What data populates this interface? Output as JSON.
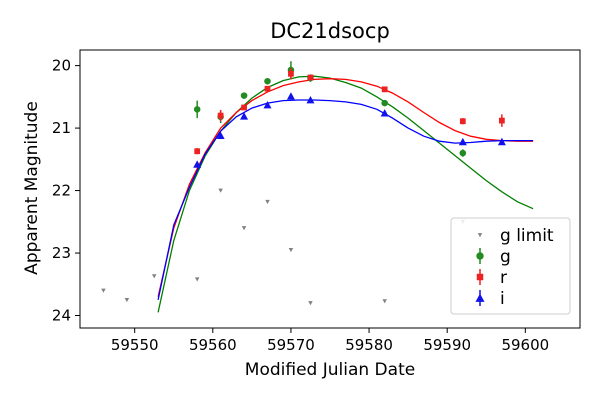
{
  "chart_data": {
    "type": "scatter",
    "title": "DC21dsocp",
    "xlabel": "Modified Julian Date",
    "ylabel": "Apparent Magnitude",
    "xlim": [
      59543,
      59607
    ],
    "ylim": [
      24.2,
      19.75
    ],
    "y_inverted": true,
    "xticks": [
      59550,
      59560,
      59570,
      59580,
      59590,
      59600
    ],
    "yticks": [
      20,
      21,
      22,
      23,
      24
    ],
    "grid": false,
    "legend_placement": "lower right",
    "series": [
      {
        "name": "g limit",
        "kind": "limit",
        "color": "#808080",
        "marker": "triangle-down",
        "x": [
          59546,
          59549,
          59552.5,
          59558,
          59561,
          59564,
          59567,
          59570,
          59572.5,
          59582,
          59592
        ],
        "y": [
          23.6,
          23.75,
          23.37,
          23.42,
          22.0,
          22.6,
          22.18,
          22.95,
          23.8,
          23.77,
          22.5
        ]
      },
      {
        "name": "g",
        "kind": "detection",
        "color": "#228b22",
        "marker": "circle",
        "x": [
          59558,
          59561,
          59564,
          59567,
          59570,
          59572.5,
          59582,
          59592
        ],
        "y": [
          20.7,
          20.82,
          20.48,
          20.25,
          20.07,
          20.2,
          20.6,
          21.4
        ],
        "err": [
          0.14,
          0.1,
          0.05,
          0.04,
          0.14,
          0.06,
          0.04,
          0.06
        ]
      },
      {
        "name": "r",
        "kind": "detection",
        "color": "#ee2222",
        "marker": "square",
        "x": [
          59558,
          59561,
          59564,
          59567,
          59570,
          59572.5,
          59582,
          59592,
          59597
        ],
        "y": [
          21.37,
          20.8,
          20.67,
          20.37,
          20.13,
          20.19,
          20.38,
          20.89,
          20.88
        ],
        "err": [
          0.05,
          0.09,
          0.04,
          0.03,
          0.09,
          0.04,
          0.03,
          0.05,
          0.1
        ]
      },
      {
        "name": "i",
        "kind": "detection",
        "color": "#1111ee",
        "marker": "triangle-up",
        "x": [
          59558,
          59561,
          59564,
          59567,
          59570,
          59572.5,
          59582,
          59592,
          59597
        ],
        "y": [
          21.58,
          21.12,
          20.81,
          20.63,
          20.49,
          20.55,
          20.76,
          21.22,
          21.22
        ],
        "err": [
          0.03,
          0.04,
          0.03,
          0.03,
          0.04,
          0.03,
          0.03,
          0.04,
          0.05
        ]
      }
    ],
    "model_curves": [
      {
        "color": "#008000",
        "x": [
          59553,
          59555,
          59557,
          59559,
          59561,
          59563,
          59565,
          59567,
          59569,
          59571,
          59573,
          59575,
          59577,
          59579,
          59581,
          59583,
          59585,
          59587,
          59589,
          59591,
          59593,
          59595,
          59597,
          59599,
          59601
        ],
        "y": [
          23.95,
          22.8,
          22.0,
          21.45,
          21.05,
          20.75,
          20.52,
          20.35,
          20.24,
          20.18,
          20.17,
          20.2,
          20.27,
          20.36,
          20.5,
          20.66,
          20.84,
          21.04,
          21.24,
          21.44,
          21.64,
          21.84,
          22.02,
          22.18,
          22.29
        ]
      },
      {
        "color": "#ff0000",
        "x": [
          59553,
          59555,
          59557,
          59559,
          59561,
          59563,
          59565,
          59567,
          59569,
          59571,
          59573,
          59575,
          59577,
          59579,
          59581,
          59583,
          59585,
          59587,
          59589,
          59591,
          59593,
          59595,
          59597,
          59599,
          59601
        ],
        "y": [
          23.7,
          22.6,
          21.9,
          21.4,
          21.0,
          20.75,
          20.56,
          20.42,
          20.32,
          20.26,
          20.22,
          20.21,
          20.22,
          20.26,
          20.33,
          20.44,
          20.58,
          20.75,
          20.91,
          21.04,
          21.13,
          21.18,
          21.2,
          21.21,
          21.21
        ]
      },
      {
        "color": "#0000ff",
        "x": [
          59553,
          59555,
          59557,
          59559,
          59561,
          59563,
          59565,
          59567,
          59569,
          59571,
          59573,
          59575,
          59577,
          59579,
          59581,
          59583,
          59585,
          59587,
          59589,
          59591,
          59593,
          59595,
          59597,
          59599,
          59601
        ],
        "y": [
          23.75,
          22.55,
          21.95,
          21.42,
          21.05,
          20.82,
          20.68,
          20.6,
          20.56,
          20.55,
          20.55,
          20.56,
          20.58,
          20.62,
          20.7,
          20.84,
          21.0,
          21.13,
          21.21,
          21.24,
          21.23,
          21.21,
          21.2,
          21.2,
          21.2
        ]
      }
    ]
  }
}
